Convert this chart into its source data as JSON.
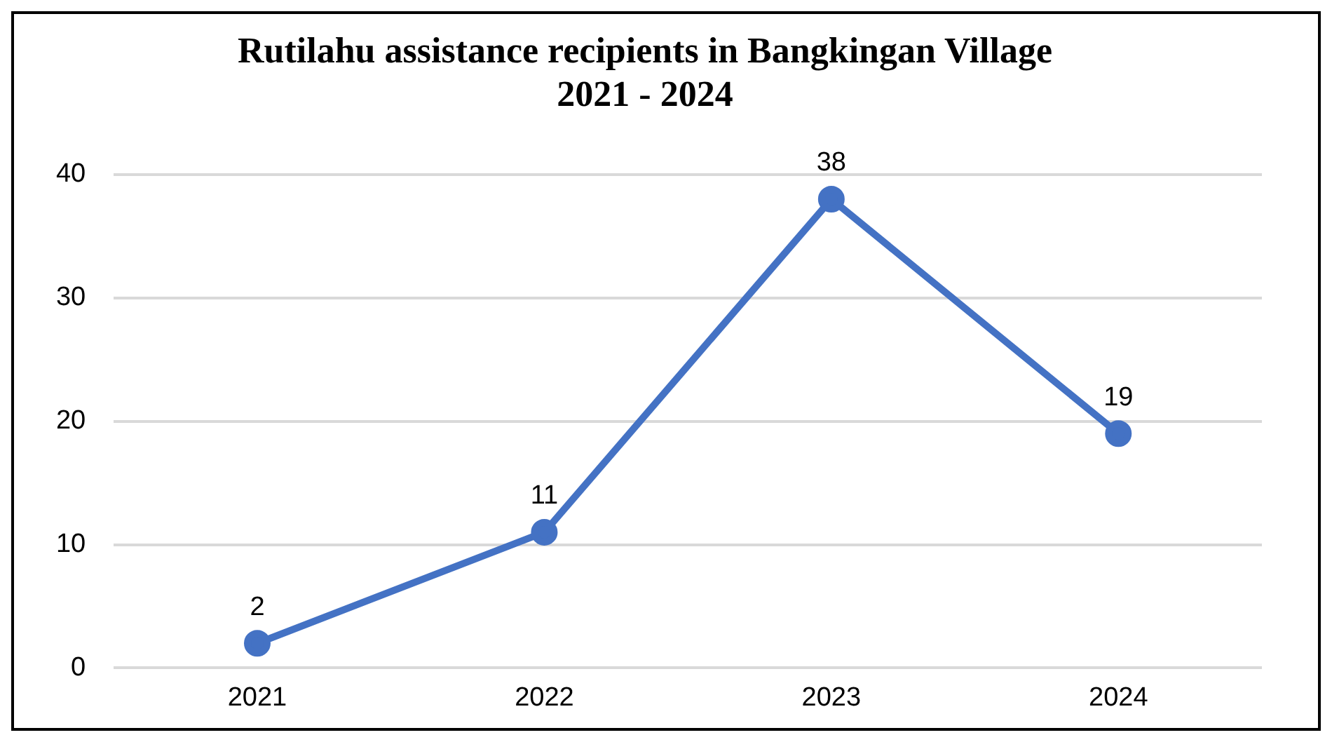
{
  "chart_data": {
    "type": "line",
    "title": "Rutilahu assistance recipients in Bangkingan Village\n2021 - 2024",
    "categories": [
      "2021",
      "2022",
      "2023",
      "2024"
    ],
    "series": [
      {
        "color": "#4472c4",
        "values": [
          2,
          11,
          38,
          19
        ]
      }
    ],
    "ylim": [
      0,
      40
    ],
    "yticks": [
      0,
      10,
      20,
      30,
      40
    ],
    "grid": "y",
    "data_labels": true,
    "marker": "circle",
    "line_style": "solid",
    "legend": false
  }
}
